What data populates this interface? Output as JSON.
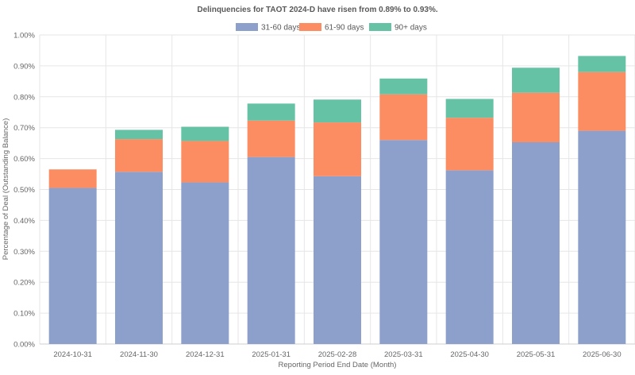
{
  "chart_data": {
    "type": "bar",
    "stacked": true,
    "title": "Delinquencies for TAOT 2024-D have risen from 0.89% to 0.93%.",
    "xlabel": "Reporting Period End Date (Month)",
    "ylabel": "Percentage of Deal (Outstanding Balance)",
    "categories": [
      "2024-10-31",
      "2024-11-30",
      "2024-12-31",
      "2025-01-31",
      "2025-02-28",
      "2025-03-31",
      "2025-04-30",
      "2025-05-31",
      "2025-06-30"
    ],
    "series": [
      {
        "name": "31-60 days",
        "color": "#8DA0CB",
        "values": [
          0.505,
          0.557,
          0.523,
          0.605,
          0.543,
          0.66,
          0.562,
          0.653,
          0.69
        ]
      },
      {
        "name": "61-90 days",
        "color": "#FC8D62",
        "values": [
          0.06,
          0.106,
          0.134,
          0.118,
          0.174,
          0.148,
          0.17,
          0.16,
          0.19
        ]
      },
      {
        "name": "90+ days",
        "color": "#66C2A5",
        "values": [
          0.0,
          0.03,
          0.046,
          0.055,
          0.074,
          0.051,
          0.061,
          0.081,
          0.052
        ]
      }
    ],
    "ylim": [
      0,
      1.0
    ],
    "yticks": [
      0.0,
      0.1,
      0.2,
      0.3,
      0.4,
      0.5,
      0.6,
      0.7,
      0.8,
      0.9,
      1.0
    ],
    "ytick_labels": [
      "0.00%",
      "0.10%",
      "0.20%",
      "0.30%",
      "0.40%",
      "0.50%",
      "0.60%",
      "0.70%",
      "0.80%",
      "0.90%",
      "1.00%"
    ],
    "grid": true,
    "legend_position": "top-center"
  }
}
